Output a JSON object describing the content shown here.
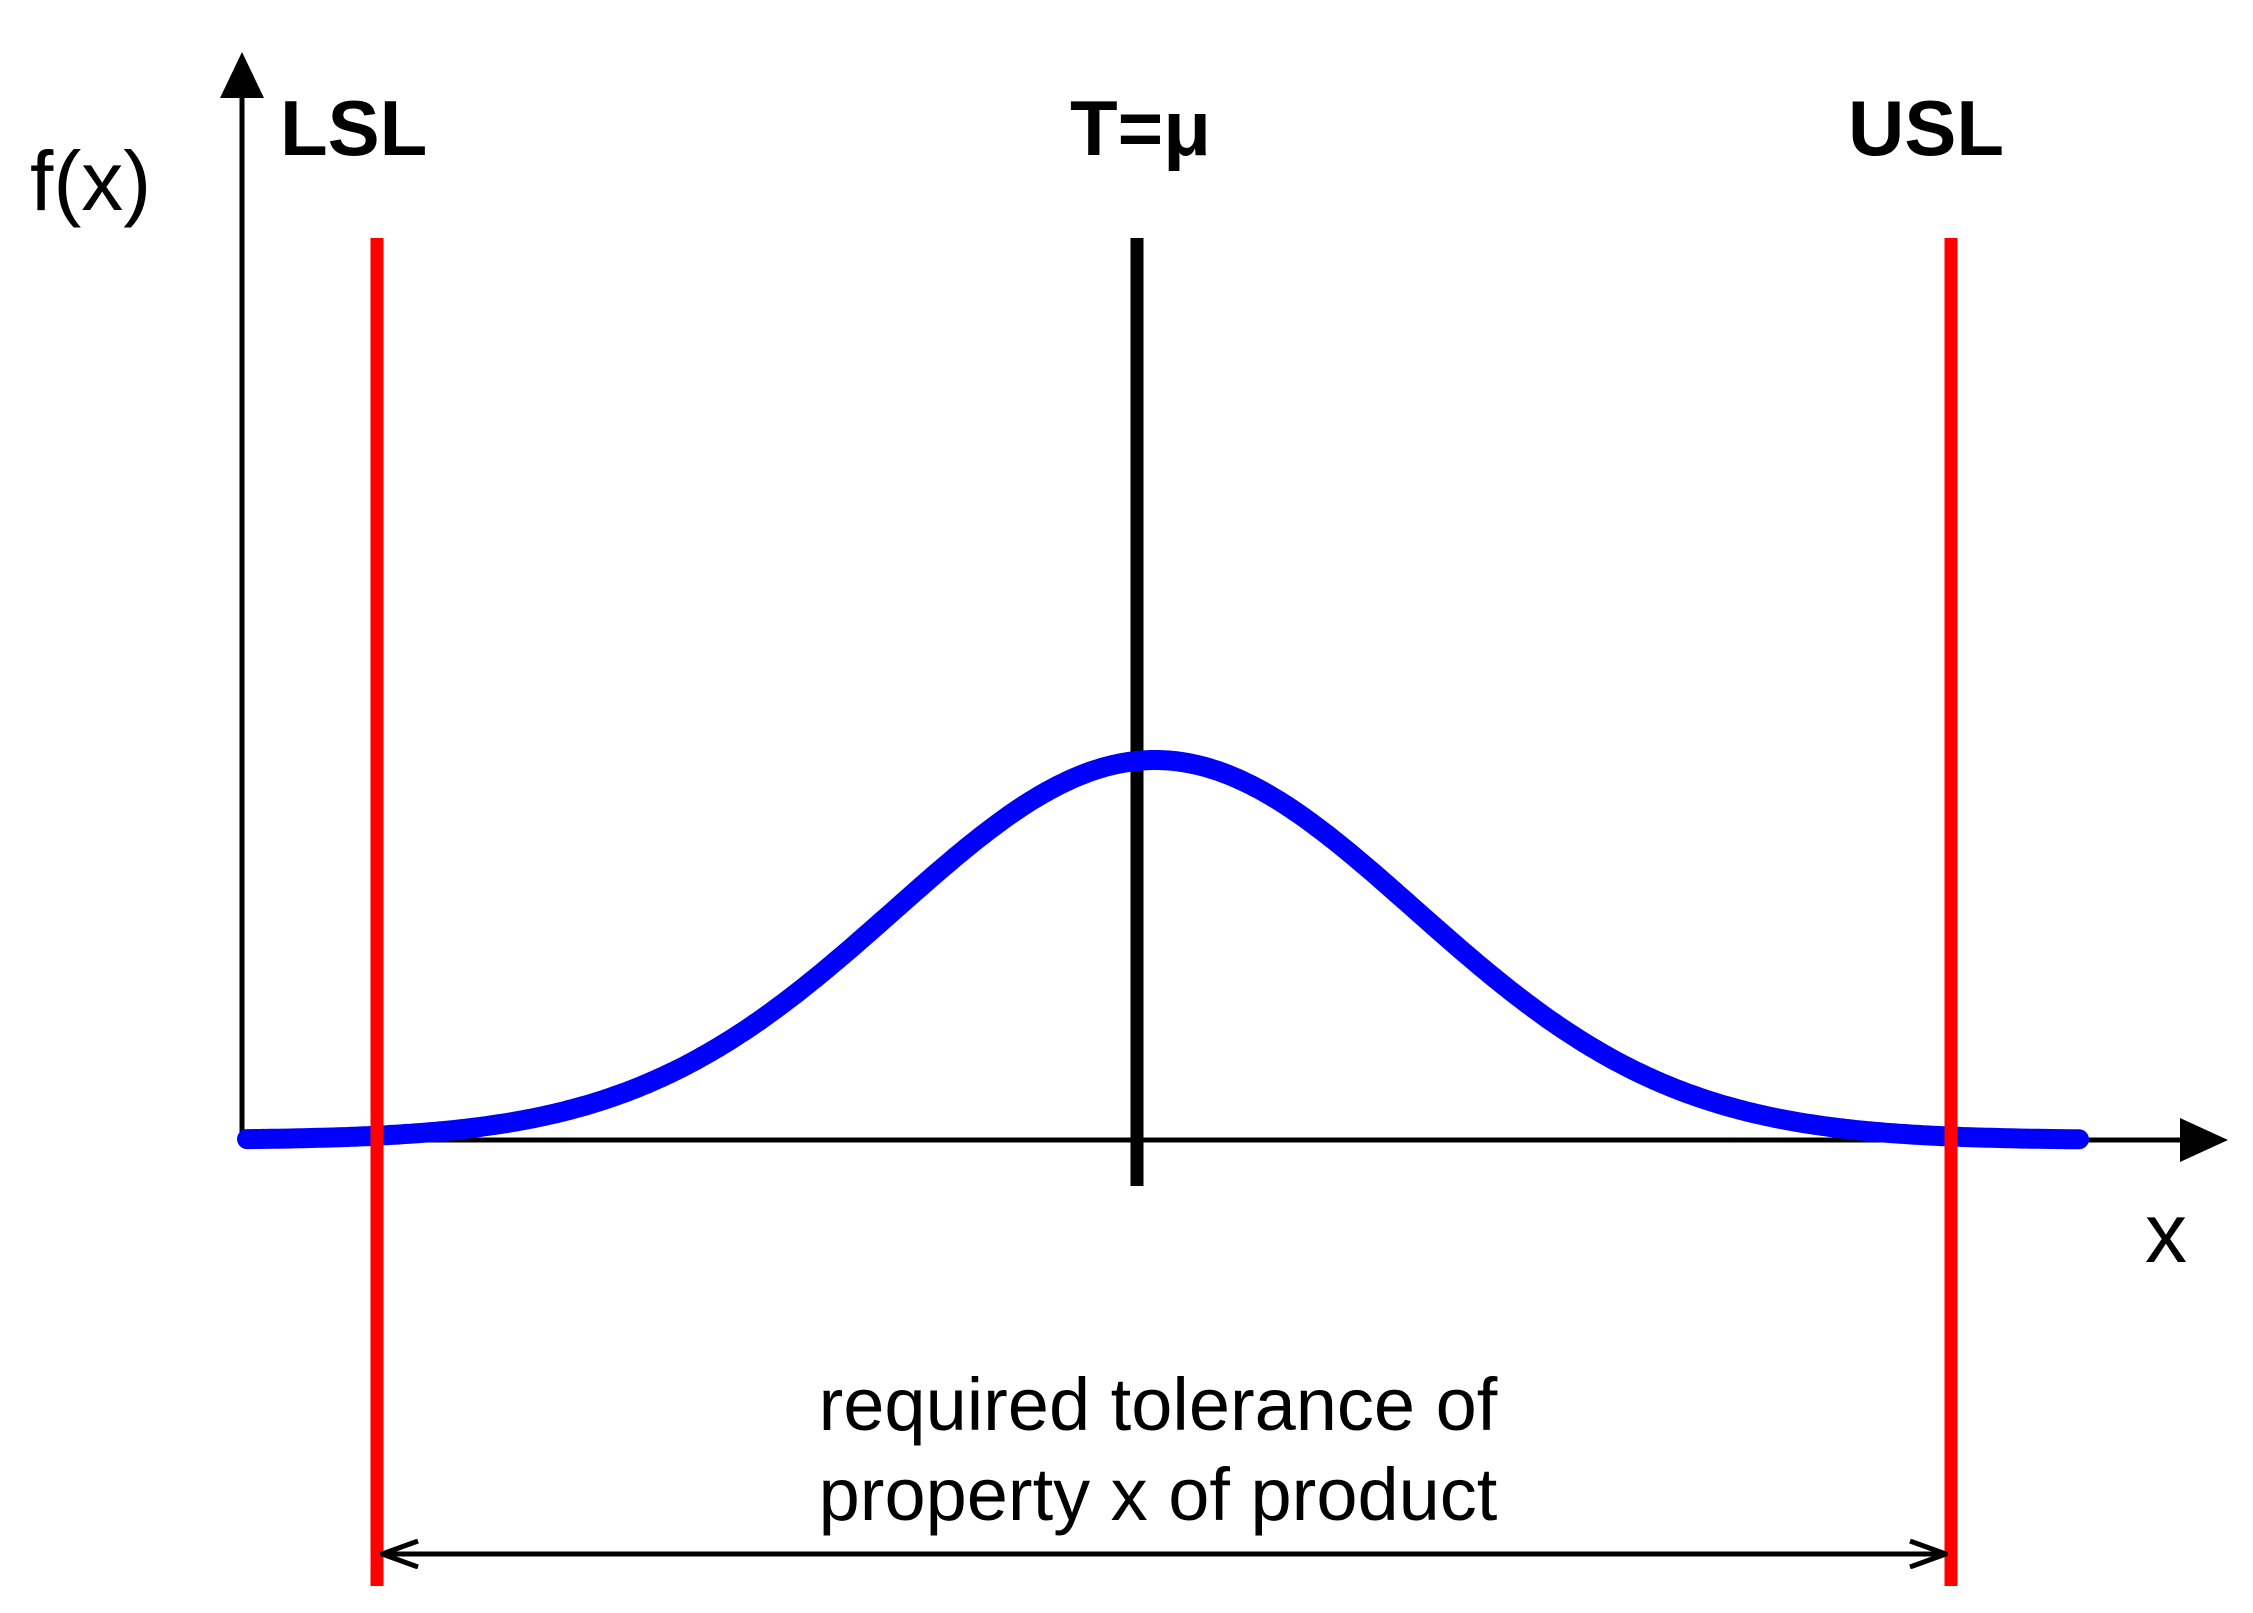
{
  "labels": {
    "y_axis": "f(x)",
    "x_axis": "x",
    "lsl": "LSL",
    "target": "T=μ",
    "usl": "USL",
    "tolerance_line1": "required tolerance of",
    "tolerance_line2": "property x of product"
  },
  "colors": {
    "limits": "#ff0000",
    "curve": "#0000ff",
    "target": "#000000",
    "axes": "#000000"
  },
  "curve": {
    "type": "normal-distribution",
    "mean_at": "target",
    "tails_meet_limits": true
  }
}
